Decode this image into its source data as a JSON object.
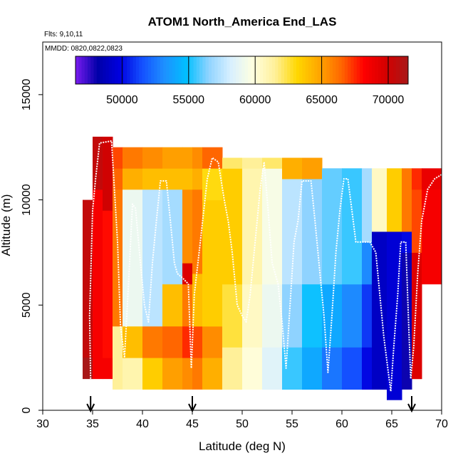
{
  "chart_data": {
    "type": "heatmap",
    "title": "ATOM1 North_America End_LAS",
    "flights_label": "Flts: 9,10,11",
    "mmdd_label": "MMDD: 0820,0822,0823",
    "xlabel": "Latitude (deg N)",
    "ylabel": "Altitude (m)",
    "xlim": [
      30,
      70
    ],
    "ylim": [
      0,
      17500
    ],
    "x_ticks": [
      30,
      35,
      40,
      45,
      50,
      55,
      60,
      65,
      70
    ],
    "y_ticks": [
      0,
      5000,
      10000,
      15000
    ],
    "colorbar": {
      "range": [
        46500,
        71500
      ],
      "ticks": [
        50000,
        55000,
        60000,
        65000,
        70000
      ],
      "colors": [
        "#7a1cf0",
        "#0000a8",
        "#0000e0",
        "#1450ff",
        "#1e90ff",
        "#00bfff",
        "#8fd3ff",
        "#d8f0ff",
        "#ffffe0",
        "#fff099",
        "#ffd700",
        "#ffa500",
        "#ff6600",
        "#ff0000",
        "#d40000",
        "#a81818"
      ]
    },
    "arrows_latitude": [
      34.8,
      45.0,
      67.0
    ],
    "columns": [
      {
        "lat": [
          34.0,
          35.0
        ],
        "bins": [
          [
            2500,
            10000,
            70500
          ],
          [
            1500,
            2500,
            71500
          ]
        ]
      },
      {
        "lat": [
          35.0,
          36.0
        ],
        "bins": [
          [
            1500,
            2500,
            68500
          ],
          [
            2500,
            10500,
            68500
          ],
          [
            10500,
            13000,
            70500
          ]
        ]
      },
      {
        "lat": [
          36.0,
          37.0
        ],
        "bins": [
          [
            1500,
            2500,
            68500
          ],
          [
            2500,
            9500,
            68000
          ],
          [
            9500,
            13000,
            70000
          ]
        ]
      },
      {
        "lat": [
          37.0,
          38.0
        ],
        "bins": [
          [
            1000,
            4000,
            61500
          ],
          [
            4000,
            10500,
            66000
          ],
          [
            10500,
            11500,
            66500
          ],
          [
            11500,
            12500,
            67000
          ]
        ]
      },
      {
        "lat": [
          38.0,
          40.0
        ],
        "bins": [
          [
            1000,
            2500,
            61000
          ],
          [
            2500,
            4000,
            64000
          ],
          [
            4000,
            10500,
            59000
          ],
          [
            10500,
            11500,
            64500
          ],
          [
            11500,
            12500,
            66000
          ]
        ]
      },
      {
        "lat": [
          40.0,
          42.0
        ],
        "bins": [
          [
            1000,
            2500,
            63500
          ],
          [
            2500,
            4000,
            66000
          ],
          [
            4000,
            10500,
            57500
          ],
          [
            10500,
            11500,
            64000
          ],
          [
            11500,
            12500,
            65500
          ]
        ]
      },
      {
        "lat": [
          42.0,
          44.0
        ],
        "bins": [
          [
            1000,
            2500,
            65000
          ],
          [
            2500,
            4000,
            66500
          ],
          [
            4000,
            6000,
            64000
          ],
          [
            6000,
            7000,
            57000
          ],
          [
            7000,
            10500,
            57000
          ],
          [
            10500,
            11500,
            64000
          ],
          [
            11500,
            12500,
            65000
          ]
        ]
      },
      {
        "lat": [
          44.0,
          45.0
        ],
        "bins": [
          [
            1000,
            2500,
            65500
          ],
          [
            2500,
            4000,
            67500
          ],
          [
            4000,
            6000,
            66000
          ],
          [
            6000,
            7000,
            69500
          ],
          [
            7000,
            10500,
            65500
          ],
          [
            10500,
            11500,
            64000
          ],
          [
            11500,
            12500,
            65000
          ]
        ]
      },
      {
        "lat": [
          45.0,
          46.0
        ],
        "bins": [
          [
            1000,
            2500,
            66000
          ],
          [
            2500,
            4000,
            67000
          ],
          [
            4000,
            6500,
            64000
          ],
          [
            6500,
            10500,
            66000
          ],
          [
            10500,
            11500,
            64500
          ],
          [
            11500,
            12500,
            65500
          ]
        ]
      },
      {
        "lat": [
          46.0,
          48.0
        ],
        "bins": [
          [
            1000,
            2500,
            64500
          ],
          [
            2500,
            4000,
            65500
          ],
          [
            4000,
            10000,
            63500
          ],
          [
            10000,
            11500,
            63000
          ],
          [
            11500,
            12500,
            66500
          ]
        ]
      },
      {
        "lat": [
          48.0,
          50.0
        ],
        "bins": [
          [
            1000,
            3000,
            61500
          ],
          [
            3000,
            6000,
            62500
          ],
          [
            6000,
            11500,
            63500
          ],
          [
            11500,
            12000,
            62000
          ]
        ]
      },
      {
        "lat": [
          50.0,
          52.0
        ],
        "bins": [
          [
            1000,
            3000,
            60000
          ],
          [
            3000,
            6000,
            60500
          ],
          [
            6000,
            11500,
            61000
          ],
          [
            11500,
            12000,
            61500
          ]
        ]
      },
      {
        "lat": [
          52.0,
          54.0
        ],
        "bins": [
          [
            1000,
            3000,
            58500
          ],
          [
            3000,
            6000,
            59000
          ],
          [
            6000,
            11500,
            59500
          ],
          [
            11500,
            12000,
            62000
          ]
        ]
      },
      {
        "lat": [
          54.0,
          56.0
        ],
        "bins": [
          [
            1000,
            3000,
            55500
          ],
          [
            3000,
            6000,
            56500
          ],
          [
            6000,
            11000,
            57500
          ],
          [
            11000,
            12000,
            64500
          ]
        ]
      },
      {
        "lat": [
          56.0,
          58.0
        ],
        "bins": [
          [
            1000,
            3000,
            54000
          ],
          [
            3000,
            6000,
            55000
          ],
          [
            6000,
            11000,
            56500
          ],
          [
            11000,
            12000,
            65000
          ]
        ]
      },
      {
        "lat": [
          58.0,
          60.0
        ],
        "bins": [
          [
            1000,
            3000,
            52500
          ],
          [
            3000,
            6000,
            54000
          ],
          [
            6000,
            11500,
            56000
          ]
        ]
      },
      {
        "lat": [
          60.0,
          62.0
        ],
        "bins": [
          [
            1000,
            3000,
            51500
          ],
          [
            3000,
            6000,
            53000
          ],
          [
            6000,
            11500,
            55500
          ]
        ]
      },
      {
        "lat": [
          62.0,
          63.0
        ],
        "bins": [
          [
            1000,
            3000,
            50000
          ],
          [
            3000,
            6000,
            51000
          ],
          [
            6000,
            8000,
            53000
          ],
          [
            8000,
            11500,
            57000
          ]
        ]
      },
      {
        "lat": [
          63.0,
          64.5
        ],
        "bins": [
          [
            1000,
            8500,
            49000
          ],
          [
            8500,
            11500,
            60500
          ]
        ]
      },
      {
        "lat": [
          64.5,
          66.0
        ],
        "bins": [
          [
            500,
            8500,
            49500
          ],
          [
            8500,
            11500,
            63500
          ]
        ]
      },
      {
        "lat": [
          66.0,
          67.0
        ],
        "bins": [
          [
            1000,
            7500,
            48000
          ],
          [
            7500,
            8500,
            50000
          ],
          [
            8500,
            11500,
            66000
          ]
        ]
      },
      {
        "lat": [
          67.0,
          68.0
        ],
        "bins": [
          [
            1500,
            7500,
            69500
          ],
          [
            7500,
            10500,
            67000
          ],
          [
            10500,
            11500,
            67500
          ]
        ]
      },
      {
        "lat": [
          68.0,
          70.0
        ],
        "bins": [
          [
            6000,
            10500,
            68500
          ],
          [
            10500,
            11500,
            69000
          ]
        ]
      }
    ],
    "flight_track": [
      [
        34.8,
        1500
      ],
      [
        34.7,
        4500
      ],
      [
        35.0,
        9500
      ],
      [
        35.3,
        11000
      ],
      [
        35.7,
        12700
      ],
      [
        36.9,
        12800
      ],
      [
        37.5,
        8000
      ],
      [
        37.8,
        4000
      ],
      [
        38.2,
        2500
      ],
      [
        38.6,
        6000
      ],
      [
        39.0,
        9800
      ],
      [
        39.3,
        9600
      ],
      [
        39.7,
        7500
      ],
      [
        40.2,
        5000
      ],
      [
        40.6,
        4200
      ],
      [
        41.0,
        7000
      ],
      [
        41.4,
        9000
      ],
      [
        41.8,
        10900
      ],
      [
        42.4,
        10900
      ],
      [
        42.8,
        9000
      ],
      [
        43.2,
        7000
      ],
      [
        43.5,
        6500
      ],
      [
        44.0,
        6300
      ],
      [
        44.6,
        6000
      ],
      [
        44.9,
        2000
      ],
      [
        45.2,
        5500
      ],
      [
        45.8,
        8000
      ],
      [
        46.5,
        11000
      ],
      [
        47.0,
        12000
      ],
      [
        47.6,
        11800
      ],
      [
        48.2,
        10000
      ],
      [
        48.6,
        9000
      ],
      [
        49.0,
        7500
      ],
      [
        49.5,
        5000
      ],
      [
        50.0,
        4500
      ],
      [
        50.4,
        4200
      ],
      [
        50.8,
        5500
      ],
      [
        51.3,
        8000
      ],
      [
        51.8,
        10500
      ],
      [
        52.2,
        11800
      ],
      [
        52.6,
        9500
      ],
      [
        53.0,
        7000
      ],
      [
        53.6,
        6000
      ],
      [
        54.0,
        4200
      ],
      [
        54.4,
        2000
      ],
      [
        54.8,
        5000
      ],
      [
        55.2,
        8000
      ],
      [
        55.6,
        9000
      ],
      [
        56.0,
        10900
      ],
      [
        56.9,
        10900
      ],
      [
        57.3,
        9000
      ],
      [
        57.8,
        6500
      ],
      [
        58.2,
        4500
      ],
      [
        58.6,
        1800
      ],
      [
        59.0,
        4500
      ],
      [
        59.4,
        7500
      ],
      [
        59.8,
        9500
      ],
      [
        60.2,
        11000
      ],
      [
        60.6,
        11000
      ],
      [
        61.0,
        9500
      ],
      [
        61.4,
        8000
      ],
      [
        62.8,
        8000
      ],
      [
        63.4,
        7500
      ],
      [
        63.8,
        5500
      ],
      [
        64.2,
        3500
      ],
      [
        64.6,
        2000
      ],
      [
        64.9,
        900
      ],
      [
        65.2,
        3000
      ],
      [
        65.6,
        5500
      ],
      [
        65.9,
        8000
      ],
      [
        66.4,
        8000
      ],
      [
        66.7,
        4000
      ],
      [
        66.9,
        1500
      ],
      [
        67.2,
        3000
      ],
      [
        67.6,
        6500
      ],
      [
        68.0,
        9000
      ],
      [
        68.6,
        10500
      ],
      [
        69.3,
        11000
      ],
      [
        70.0,
        11200
      ]
    ]
  }
}
